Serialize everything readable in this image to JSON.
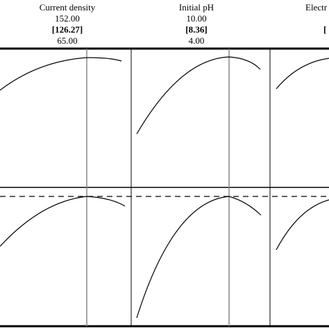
{
  "factors": [
    {
      "name": "Current density",
      "high": "152.00",
      "optimum": "[126.27]",
      "low": "65.00"
    },
    {
      "name": "Initial pH",
      "high": "10.00",
      "optimum": "[8.36]",
      "low": "4.00"
    },
    {
      "name": "Electr",
      "optimum": "["
    }
  ]
}
